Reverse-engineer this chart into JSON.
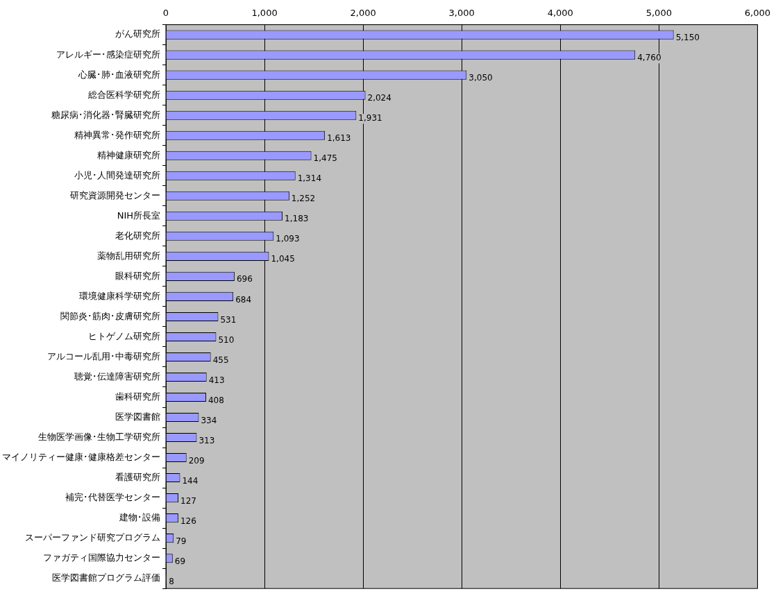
{
  "chart_data": {
    "type": "bar",
    "orientation": "horizontal",
    "categories": [
      "がん研究所",
      "アレルギー･感染症研究所",
      "心臓･肺･血液研究所",
      "総合医科学研究所",
      "糖尿病･消化器･腎臓研究所",
      "精神異常･発作研究所",
      "精神健康研究所",
      "小児･人間発達研究所",
      "研究資源開発センター",
      "NIH所長室",
      "老化研究所",
      "薬物乱用研究所",
      "眼科研究所",
      "環境健康科学研究所",
      "関節炎･筋肉･皮膚研究所",
      "ヒトゲノム研究所",
      "アルコール乱用･中毒研究所",
      "聴覚･伝達障害研究所",
      "歯科研究所",
      "医学図書館",
      "生物医学画像･生物工学研究所",
      "マイノリティー健康･健康格差センター",
      "看護研究所",
      "補完･代替医学センター",
      "建物･設備",
      "スーパーファンド研究プログラム",
      "ファガティ国際協力センター",
      "医学図書館プログラム評価"
    ],
    "values": [
      5150,
      4760,
      3050,
      2024,
      1931,
      1613,
      1475,
      1314,
      1252,
      1183,
      1093,
      1045,
      696,
      684,
      531,
      510,
      455,
      413,
      408,
      334,
      313,
      209,
      144,
      127,
      126,
      79,
      69,
      8
    ],
    "color": "#9999ff",
    "xlim": [
      0,
      6000
    ],
    "xticks": [
      {
        "value": 0,
        "label": "0"
      },
      {
        "value": 1000,
        "label": "1,000"
      },
      {
        "value": 2000,
        "label": "2,000"
      },
      {
        "value": 3000,
        "label": "3,000"
      },
      {
        "value": 4000,
        "label": "4,000"
      },
      {
        "value": 5000,
        "label": "5,000"
      },
      {
        "value": 6000,
        "label": "6,000"
      }
    ],
    "value_labels": [
      "5,150",
      "4,760",
      "3,050",
      "2,024",
      "1,931",
      "1,613",
      "1,475",
      "1,314",
      "1,252",
      "1,183",
      "1,093",
      "1,045",
      "696",
      "684",
      "531",
      "510",
      "455",
      "413",
      "408",
      "334",
      "313",
      "209",
      "144",
      "127",
      "126",
      "79",
      "69",
      "8"
    ],
    "grid": "x",
    "legend": false
  }
}
